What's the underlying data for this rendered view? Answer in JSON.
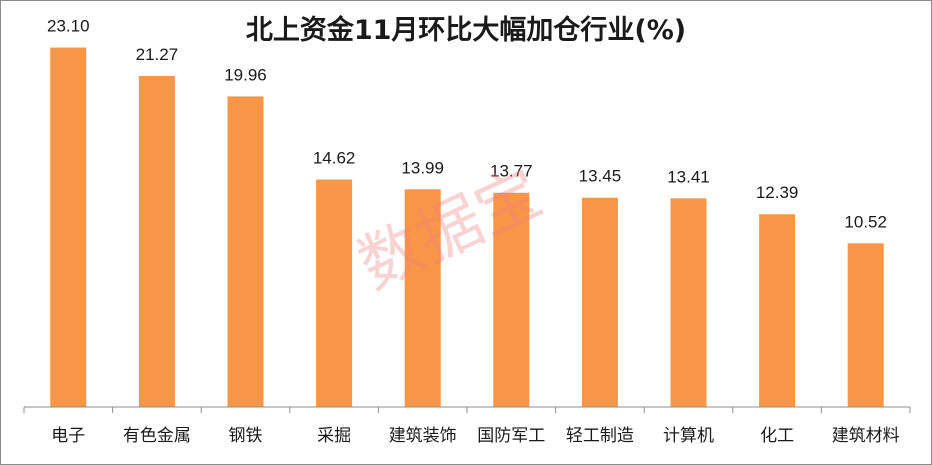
{
  "watermark": "数据宝",
  "chart_data": {
    "type": "bar",
    "title": "北上资金11月环比大幅加仓行业(%)",
    "categories": [
      "电子",
      "有色金属",
      "钢铁",
      "采掘",
      "建筑装饰",
      "国防军工",
      "轻工制造",
      "计算机",
      "化工",
      "建筑材料"
    ],
    "values": [
      23.1,
      21.27,
      19.96,
      14.62,
      13.99,
      13.77,
      13.45,
      13.41,
      12.39,
      10.52
    ],
    "value_labels": [
      "23.10",
      "21.27",
      "19.96",
      "14.62",
      "13.99",
      "13.77",
      "13.45",
      "13.41",
      "12.39",
      "10.52"
    ],
    "xlabel": "",
    "ylabel": "",
    "ylim": [
      0,
      25
    ],
    "bar_color": "#f79646",
    "grid": false,
    "legend": "none"
  }
}
